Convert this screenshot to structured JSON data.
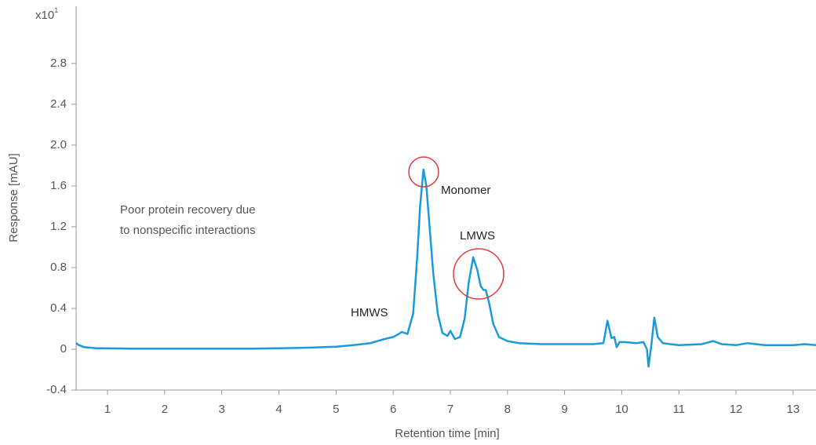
{
  "chart_data": {
    "type": "line",
    "x_label": "Retention time [min]",
    "y_label": "Response [mAU]",
    "y_scale_label": {
      "base": "x10",
      "exponent": "1"
    },
    "x": [
      0.45,
      0.5,
      0.6,
      0.8,
      1.5,
      2.5,
      3.5,
      4.0,
      4.5,
      5.0,
      5.3,
      5.6,
      5.85,
      6.0,
      6.1,
      6.15,
      6.25,
      6.35,
      6.42,
      6.47,
      6.53,
      6.58,
      6.63,
      6.7,
      6.78,
      6.86,
      6.95,
      7.0,
      7.08,
      7.17,
      7.25,
      7.32,
      7.4,
      7.47,
      7.53,
      7.58,
      7.62,
      7.68,
      7.75,
      7.85,
      8.0,
      8.2,
      8.6,
      9.0,
      9.5,
      9.68,
      9.75,
      9.82,
      9.87,
      9.91,
      9.96,
      10.05,
      10.25,
      10.38,
      10.44,
      10.47,
      10.52,
      10.57,
      10.63,
      10.72,
      10.85,
      11.0,
      11.4,
      11.6,
      11.75,
      12.0,
      12.2,
      12.5,
      12.8,
      13.0,
      13.2,
      13.4
    ],
    "values": [
      0.06,
      0.04,
      0.02,
      0.01,
      0.005,
      0.005,
      0.005,
      0.01,
      0.015,
      0.025,
      0.04,
      0.06,
      0.1,
      0.12,
      0.15,
      0.17,
      0.15,
      0.35,
      0.9,
      1.4,
      1.76,
      1.6,
      1.25,
      0.75,
      0.35,
      0.16,
      0.13,
      0.18,
      0.1,
      0.12,
      0.3,
      0.65,
      0.9,
      0.78,
      0.62,
      0.58,
      0.58,
      0.45,
      0.25,
      0.12,
      0.08,
      0.06,
      0.05,
      0.05,
      0.05,
      0.06,
      0.28,
      0.11,
      0.12,
      0.02,
      0.07,
      0.07,
      0.06,
      0.07,
      0.0,
      -0.17,
      0.05,
      0.31,
      0.12,
      0.06,
      0.05,
      0.04,
      0.05,
      0.08,
      0.05,
      0.04,
      0.06,
      0.04,
      0.04,
      0.04,
      0.05,
      0.04
    ],
    "color": "#1a9bd7",
    "xlim": [
      0.45,
      13.4
    ],
    "ylim": [
      -0.4,
      3.36
    ],
    "xticks": [
      1,
      2,
      3,
      4,
      5,
      6,
      7,
      8,
      9,
      10,
      11,
      12,
      13
    ],
    "yticks": [
      -0.4,
      {
        "value": 0,
        "label": "0"
      },
      0.4,
      0.8,
      1.2,
      1.6,
      {
        "value": 2,
        "label": "2.0"
      },
      2.4,
      2.8
    ],
    "note": [
      "Poor protein recovery due",
      "to nonspecific interactions"
    ],
    "peak_labels": [
      "HMWS",
      "Monomer",
      "LMWS"
    ],
    "highlight_color": "#e03c3c"
  }
}
